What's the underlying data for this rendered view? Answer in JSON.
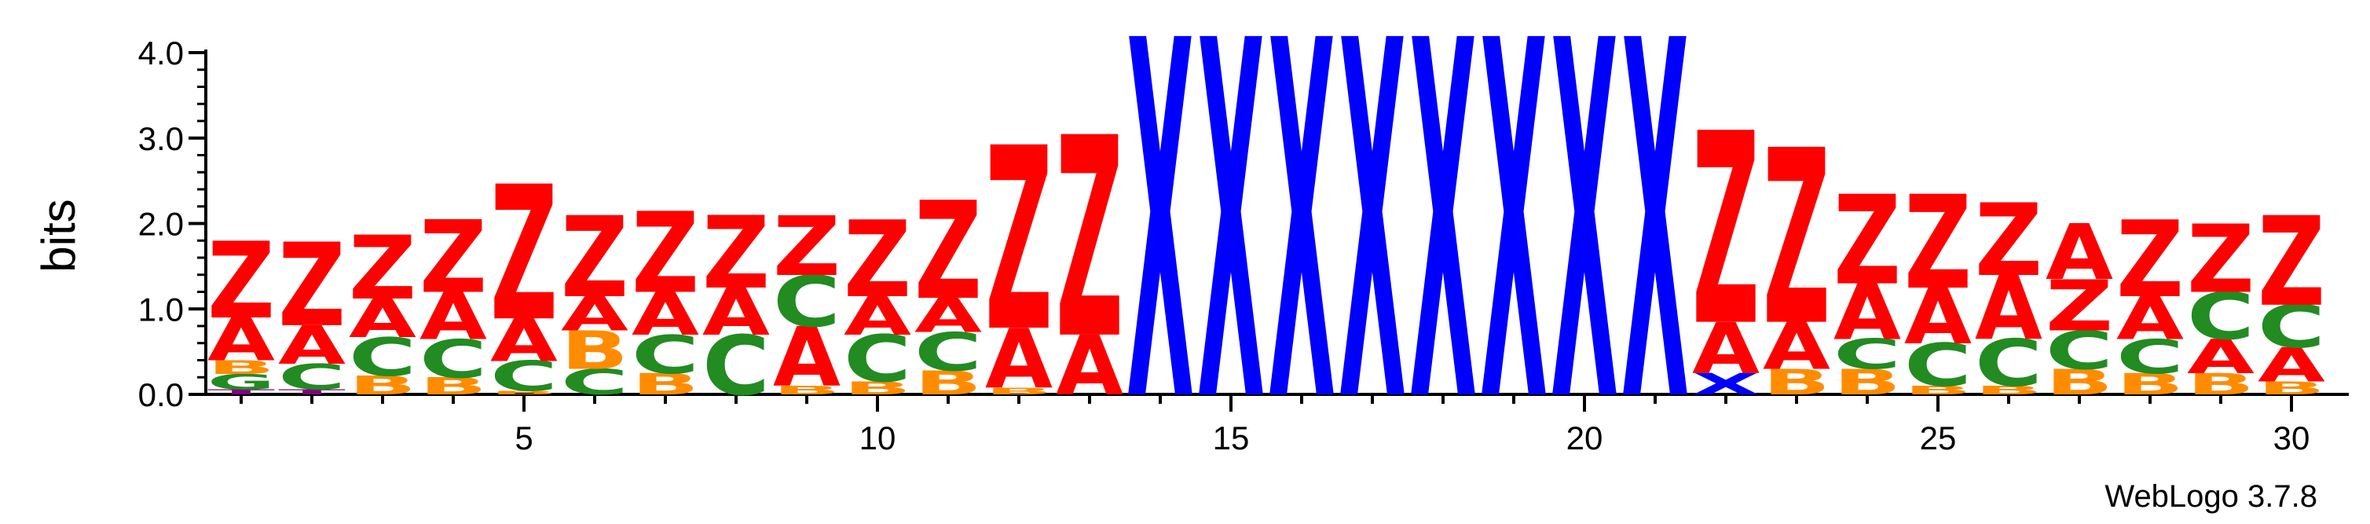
{
  "chart_data": {
    "type": "sequence_logo",
    "ylabel": "bits",
    "ylim": [
      0,
      4.0
    ],
    "y_ticks": [
      "0.0",
      "1.0",
      "2.0",
      "3.0",
      "4.0"
    ],
    "x_ticks": [
      5,
      10,
      15,
      20,
      25,
      30
    ],
    "xlim": [
      1,
      30
    ],
    "credit": "WebLogo 3.7.8",
    "colors": {
      "Z": "#ff0000",
      "A": "#ff0000",
      "C": "#228b22",
      "B": "#ff8c00",
      "X": "#0000ff",
      "T": "#800080"
    },
    "positions": [
      {
        "pos": 1,
        "stack": [
          [
            "T",
            0.06
          ],
          [
            "G",
            0.18
          ],
          [
            "B",
            0.16
          ],
          [
            "A",
            0.5
          ],
          [
            "Z",
            0.9
          ]
        ]
      },
      {
        "pos": 2,
        "stack": [
          [
            "T",
            0.06
          ],
          [
            "C",
            0.3
          ],
          [
            "A",
            0.45
          ],
          [
            "Z",
            0.98
          ]
        ]
      },
      {
        "pos": 3,
        "stack": [
          [
            "B",
            0.22
          ],
          [
            "C",
            0.45
          ],
          [
            "A",
            0.45
          ],
          [
            "Z",
            0.75
          ]
        ]
      },
      {
        "pos": 4,
        "stack": [
          [
            "B",
            0.2
          ],
          [
            "C",
            0.45
          ],
          [
            "A",
            0.55
          ],
          [
            "Z",
            0.85
          ]
        ]
      },
      {
        "pos": 5,
        "stack": [
          [
            "B",
            0.04
          ],
          [
            "C",
            0.35
          ],
          [
            "A",
            0.5
          ],
          [
            "Z",
            1.58
          ]
        ]
      },
      {
        "pos": 6,
        "stack": [
          [
            "C",
            0.3
          ],
          [
            "B",
            0.45
          ],
          [
            "A",
            0.4
          ],
          [
            "Z",
            0.95
          ]
        ]
      },
      {
        "pos": 7,
        "stack": [
          [
            "B",
            0.25
          ],
          [
            "C",
            0.45
          ],
          [
            "A",
            0.5
          ],
          [
            "Z",
            0.95
          ]
        ]
      },
      {
        "pos": 8,
        "stack": [
          [
            "C",
            0.7
          ],
          [
            "A",
            0.55
          ],
          [
            "Z",
            0.85
          ]
        ]
      },
      {
        "pos": 9,
        "stack": [
          [
            "B",
            0.1
          ],
          [
            "A",
            0.7
          ],
          [
            "C",
            0.6
          ],
          [
            "Z",
            0.7
          ]
        ]
      },
      {
        "pos": 10,
        "stack": [
          [
            "B",
            0.15
          ],
          [
            "C",
            0.55
          ],
          [
            "A",
            0.45
          ],
          [
            "Z",
            0.9
          ]
        ]
      },
      {
        "pos": 11,
        "stack": [
          [
            "B",
            0.28
          ],
          [
            "C",
            0.45
          ],
          [
            "A",
            0.4
          ],
          [
            "Z",
            1.15
          ]
        ]
      },
      {
        "pos": 12,
        "stack": [
          [
            "B",
            0.08
          ],
          [
            "A",
            0.7
          ],
          [
            "Z",
            2.15
          ]
        ]
      },
      {
        "pos": 13,
        "stack": [
          [
            "A",
            0.7
          ],
          [
            "Z",
            2.35
          ]
        ]
      },
      {
        "pos": 14,
        "stack": [
          [
            "X",
            4.2
          ]
        ]
      },
      {
        "pos": 15,
        "stack": [
          [
            "X",
            4.2
          ]
        ]
      },
      {
        "pos": 16,
        "stack": [
          [
            "X",
            4.2
          ]
        ]
      },
      {
        "pos": 17,
        "stack": [
          [
            "X",
            4.2
          ]
        ]
      },
      {
        "pos": 18,
        "stack": [
          [
            "X",
            4.2
          ]
        ]
      },
      {
        "pos": 19,
        "stack": [
          [
            "X",
            4.2
          ]
        ]
      },
      {
        "pos": 20,
        "stack": [
          [
            "X",
            4.2
          ]
        ]
      },
      {
        "pos": 21,
        "stack": [
          [
            "X",
            4.2
          ]
        ]
      },
      {
        "pos": 22,
        "stack": [
          [
            "X",
            0.25
          ],
          [
            "A",
            0.6
          ],
          [
            "Z",
            2.25
          ]
        ]
      },
      {
        "pos": 23,
        "stack": [
          [
            "B",
            0.3
          ],
          [
            "A",
            0.55
          ],
          [
            "Z",
            2.05
          ]
        ]
      },
      {
        "pos": 24,
        "stack": [
          [
            "B",
            0.3
          ],
          [
            "C",
            0.35
          ],
          [
            "A",
            0.65
          ],
          [
            "Z",
            1.05
          ]
        ]
      },
      {
        "pos": 25,
        "stack": [
          [
            "B",
            0.1
          ],
          [
            "C",
            0.5
          ],
          [
            "A",
            0.65
          ],
          [
            "Z",
            1.1
          ]
        ]
      },
      {
        "pos": 26,
        "stack": [
          [
            "B",
            0.1
          ],
          [
            "C",
            0.55
          ],
          [
            "A",
            0.75
          ],
          [
            "Z",
            0.85
          ]
        ]
      },
      {
        "pos": 27,
        "stack": [
          [
            "B",
            0.3
          ],
          [
            "C",
            0.45
          ],
          [
            "Z",
            0.6
          ],
          [
            "A",
            0.65
          ]
        ]
      },
      {
        "pos": 28,
        "stack": [
          [
            "B",
            0.25
          ],
          [
            "C",
            0.4
          ],
          [
            "A",
            0.5
          ],
          [
            "Z",
            0.9
          ]
        ]
      },
      {
        "pos": 29,
        "stack": [
          [
            "B",
            0.25
          ],
          [
            "A",
            0.4
          ],
          [
            "C",
            0.55
          ],
          [
            "Z",
            0.8
          ]
        ]
      },
      {
        "pos": 30,
        "stack": [
          [
            "B",
            0.15
          ],
          [
            "A",
            0.4
          ],
          [
            "C",
            0.5
          ],
          [
            "Z",
            1.05
          ]
        ]
      }
    ]
  }
}
